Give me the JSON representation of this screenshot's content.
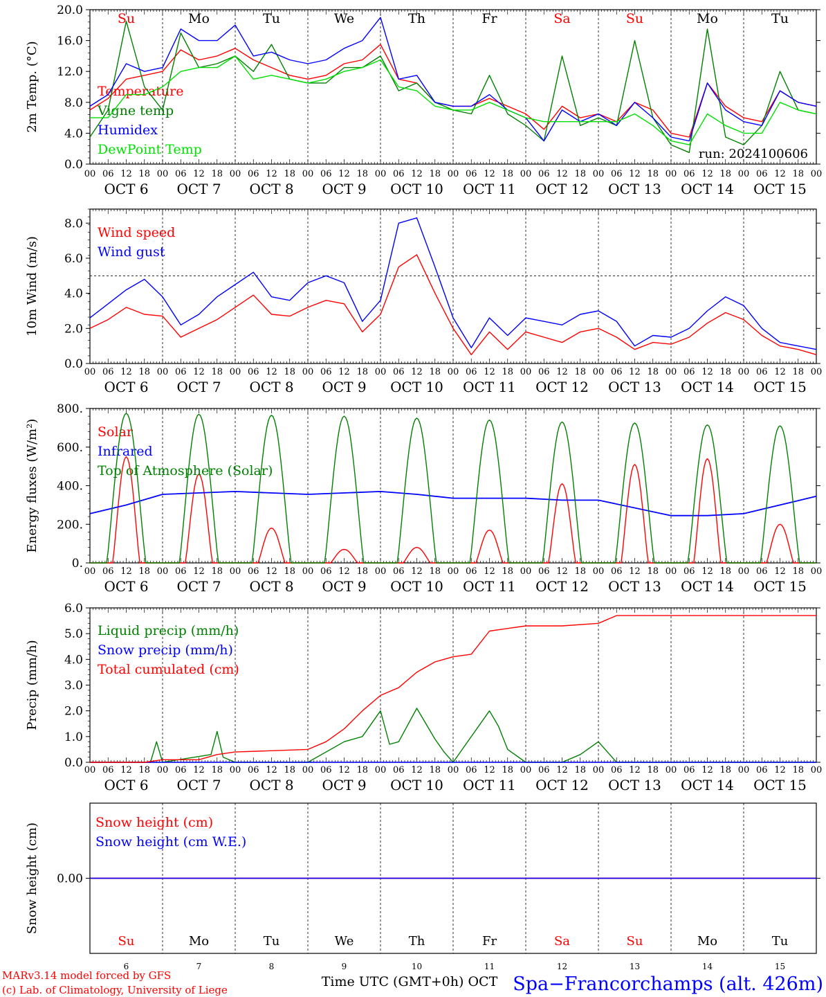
{
  "days": {
    "letters": [
      "Su",
      "Mo",
      "Tu",
      "We",
      "Th",
      "Fr",
      "Sa",
      "Su",
      "Mo",
      "Tu"
    ],
    "weekend_flags": [
      true,
      false,
      false,
      false,
      false,
      false,
      true,
      true,
      false,
      false
    ],
    "date_labels": [
      "OCT  6",
      "OCT  7",
      "OCT  8",
      "OCT  9",
      "OCT 10",
      "OCT 11",
      "OCT 12",
      "OCT 13",
      "OCT 14",
      "OCT 15"
    ],
    "day_numbers": [
      "6",
      "7",
      "8",
      "9",
      "10",
      "11",
      "12",
      "13",
      "14",
      "15"
    ],
    "hour_ticks": [
      "00",
      "06",
      "12",
      "18"
    ],
    "final_hour": "00"
  },
  "colors": {
    "red": "#ff0000",
    "green": "#008000",
    "blue": "#0000ff",
    "lightgreen": "#00e000",
    "purple": "#800080"
  },
  "chart_data": [
    {
      "type": "line",
      "ylabel": "2m Temp. (°C)",
      "yticks": [
        "0.0",
        "4.0",
        "8.0",
        "12.0",
        "16.0",
        "20.0"
      ],
      "ylim": [
        0,
        20
      ],
      "hours": [
        0,
        6,
        12,
        18,
        24,
        30,
        36,
        42,
        48,
        54,
        60,
        66,
        72,
        78,
        84,
        90,
        96,
        102,
        108,
        114,
        120,
        126,
        132,
        138,
        144,
        150,
        156,
        162,
        168,
        174,
        180,
        186,
        192,
        198,
        204,
        210,
        216,
        222,
        228,
        234,
        240
      ],
      "run_label": "run: 2024100606",
      "series": [
        {
          "name": "Temperature",
          "color": "red",
          "values": [
            7.0,
            8.5,
            11.0,
            11.5,
            12.0,
            14.8,
            13.5,
            14.0,
            15.0,
            13.5,
            12.5,
            11.5,
            11.0,
            11.5,
            13.0,
            13.5,
            15.5,
            11.0,
            10.5,
            8.0,
            7.5,
            7.5,
            8.5,
            7.5,
            6.5,
            4.5,
            7.5,
            6.0,
            6.5,
            5.5,
            8.0,
            7.0,
            4.0,
            3.5,
            10.5,
            7.5,
            6.0,
            5.5,
            9.5,
            8.0,
            7.5
          ]
        },
        {
          "name": "Vigne temp",
          "color": "green",
          "values": [
            3.5,
            7.0,
            18.5,
            10.0,
            7.0,
            17.0,
            12.5,
            13.0,
            14.0,
            12.0,
            15.5,
            11.0,
            10.5,
            10.5,
            12.5,
            12.5,
            14.0,
            9.5,
            10.5,
            8.0,
            7.0,
            6.5,
            11.5,
            6.5,
            5.0,
            3.0,
            14.0,
            5.0,
            6.0,
            5.0,
            16.0,
            6.0,
            2.5,
            1.5,
            17.5,
            3.5,
            2.5,
            5.0,
            12.0,
            7.0,
            6.5
          ]
        },
        {
          "name": "Humidex",
          "color": "blue",
          "values": [
            7.5,
            9.0,
            13.0,
            12.0,
            12.5,
            17.5,
            16.0,
            16.0,
            18.0,
            14.0,
            14.5,
            13.5,
            13.0,
            13.5,
            15.0,
            16.0,
            19.0,
            11.0,
            11.5,
            8.0,
            7.5,
            7.5,
            9.0,
            7.0,
            6.0,
            3.0,
            7.0,
            5.5,
            6.5,
            5.0,
            8.0,
            6.0,
            3.5,
            3.0,
            10.5,
            7.0,
            5.5,
            5.0,
            9.5,
            8.0,
            7.5
          ]
        },
        {
          "name": "DewPoint Temp",
          "color": "lightgreen",
          "values": [
            6.0,
            6.0,
            9.0,
            9.0,
            10.0,
            12.0,
            12.5,
            12.5,
            14.0,
            11.0,
            11.5,
            11.0,
            10.5,
            11.0,
            12.0,
            12.5,
            13.5,
            10.0,
            9.5,
            7.5,
            7.0,
            7.0,
            8.0,
            7.0,
            6.0,
            5.5,
            5.5,
            5.5,
            5.5,
            5.5,
            6.5,
            5.0,
            3.0,
            2.5,
            6.5,
            5.0,
            4.0,
            4.0,
            8.0,
            7.0,
            6.5
          ]
        }
      ]
    },
    {
      "type": "line",
      "ylabel": "10m Wind (m/s)",
      "yticks": [
        "0.0",
        "2.0",
        "4.0",
        "6.0",
        "8.0"
      ],
      "ylim": [
        0,
        8.8
      ],
      "ref_line": 5,
      "hours": [
        0,
        6,
        12,
        18,
        24,
        30,
        36,
        42,
        48,
        54,
        60,
        66,
        72,
        78,
        84,
        90,
        96,
        102,
        108,
        114,
        120,
        126,
        132,
        138,
        144,
        150,
        156,
        162,
        168,
        174,
        180,
        186,
        192,
        198,
        204,
        210,
        216,
        222,
        228,
        234,
        240
      ],
      "series": [
        {
          "name": "Wind speed",
          "color": "red",
          "values": [
            2.0,
            2.5,
            3.2,
            2.8,
            2.7,
            1.5,
            2.0,
            2.5,
            3.2,
            3.9,
            2.8,
            2.7,
            3.2,
            3.6,
            3.4,
            1.8,
            2.8,
            5.5,
            6.2,
            4.0,
            2.0,
            0.5,
            1.8,
            0.8,
            1.8,
            1.5,
            1.2,
            1.8,
            2.0,
            1.5,
            0.8,
            1.2,
            1.1,
            1.5,
            2.3,
            2.9,
            2.5,
            1.6,
            1.0,
            0.8,
            0.5
          ]
        },
        {
          "name": "Wind gust",
          "color": "blue",
          "values": [
            2.6,
            3.4,
            4.2,
            4.8,
            3.8,
            2.2,
            2.8,
            3.8,
            4.5,
            5.2,
            3.8,
            3.6,
            4.6,
            5.0,
            4.6,
            2.4,
            3.6,
            8.0,
            8.3,
            5.5,
            2.6,
            0.9,
            2.6,
            1.6,
            2.6,
            2.4,
            2.2,
            2.8,
            3.0,
            2.4,
            1.0,
            1.6,
            1.5,
            2.0,
            3.0,
            3.8,
            3.3,
            2.0,
            1.2,
            1.0,
            0.8
          ]
        }
      ]
    },
    {
      "type": "line",
      "ylabel": "Energy fluxes (W/m²)",
      "yticks": [
        "0.",
        "200.",
        "400.",
        "600.",
        "800."
      ],
      "ylim": [
        0,
        800
      ],
      "series": [
        {
          "name": "Solar",
          "color": "red",
          "day_peaks": [
            550,
            460,
            180,
            70,
            80,
            170,
            410,
            510,
            540,
            200
          ]
        },
        {
          "name": "Infrared",
          "color": "blue",
          "hours": [
            0,
            12,
            24,
            48,
            72,
            96,
            108,
            120,
            144,
            156,
            168,
            192,
            204,
            216,
            240
          ],
          "values": [
            255,
            300,
            355,
            370,
            355,
            370,
            355,
            335,
            335,
            325,
            325,
            245,
            245,
            255,
            345
          ]
        },
        {
          "name": "Top of Atmosphere (Solar)",
          "color": "green",
          "day_peaks": [
            775,
            770,
            765,
            760,
            750,
            740,
            730,
            725,
            715,
            710
          ]
        }
      ]
    },
    {
      "type": "line",
      "ylabel": "Precip (mm/h)",
      "yticks": [
        "0.0",
        "1.0",
        "2.0",
        "3.0",
        "4.0",
        "5.0",
        "6.0"
      ],
      "ylim": [
        0,
        6
      ],
      "series": [
        {
          "name": "Liquid precip (mm/h)",
          "color": "green",
          "hours": [
            0,
            20,
            22,
            24,
            40,
            42,
            44,
            48,
            72,
            84,
            90,
            96,
            99,
            102,
            108,
            114,
            117,
            120,
            132,
            135,
            138,
            144,
            156,
            162,
            168,
            174,
            240
          ],
          "values": [
            0,
            0,
            0.8,
            0,
            0.3,
            1.2,
            0.2,
            0,
            0,
            0.8,
            1.0,
            2.0,
            0.7,
            0.8,
            2.1,
            0.9,
            0.4,
            0,
            2.0,
            1.4,
            0.5,
            0,
            0,
            0.3,
            0.8,
            0,
            0
          ]
        },
        {
          "name": "Snow precip (mm/h)",
          "color": "blue",
          "hours": [
            0,
            240
          ],
          "values": [
            0,
            0
          ]
        },
        {
          "name": "Total cumulated (cm)",
          "color": "red",
          "hours": [
            0,
            18,
            24,
            36,
            42,
            48,
            72,
            78,
            84,
            90,
            96,
            102,
            108,
            114,
            120,
            126,
            132,
            138,
            144,
            156,
            168,
            174,
            180,
            240
          ],
          "values": [
            0,
            0,
            0.1,
            0.1,
            0.3,
            0.4,
            0.5,
            0.8,
            1.3,
            2.0,
            2.6,
            2.9,
            3.5,
            3.9,
            4.1,
            4.2,
            5.1,
            5.2,
            5.3,
            5.3,
            5.4,
            5.7,
            5.7,
            5.7
          ]
        }
      ]
    },
    {
      "type": "line",
      "ylabel": "Snow height (cm)",
      "yticks": [
        "0.00"
      ],
      "ylim": [
        -1,
        1
      ],
      "series": [
        {
          "name": "Snow height (cm)",
          "color": "red",
          "hours": [
            0,
            240
          ],
          "values": [
            0,
            0
          ]
        },
        {
          "name": "Snow height (cm W.E.)",
          "color": "blue",
          "hours": [
            0,
            240
          ],
          "values": [
            0,
            0
          ]
        }
      ]
    }
  ],
  "footer": {
    "xlabel": "Time UTC (GMT+0h) OCT",
    "credit_line1": "MARv3.14 model forced by GFS",
    "credit_line2": "(c) Lab. of Climatology, University of Liege",
    "station": "Spa−Francorchamps (alt. 426m)"
  }
}
